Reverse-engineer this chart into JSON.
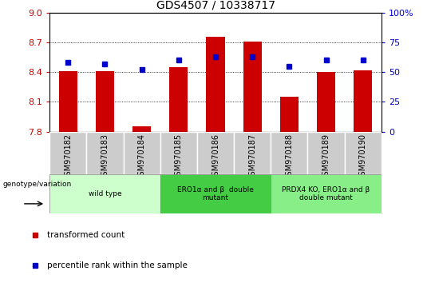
{
  "title": "GDS4507 / 10338717",
  "samples": [
    "GSM970182",
    "GSM970183",
    "GSM970184",
    "GSM970185",
    "GSM970186",
    "GSM970187",
    "GSM970188",
    "GSM970189",
    "GSM970190"
  ],
  "bar_values": [
    8.41,
    8.41,
    7.85,
    8.45,
    8.76,
    8.71,
    8.15,
    8.4,
    8.42
  ],
  "dot_values": [
    58,
    57,
    52,
    60,
    63,
    63,
    55,
    60,
    60
  ],
  "bar_color": "#cc0000",
  "dot_color": "#0000cc",
  "ylim_left": [
    7.8,
    9.0
  ],
  "ylim_right": [
    0,
    100
  ],
  "yticks_left": [
    7.8,
    8.1,
    8.4,
    8.7,
    9.0
  ],
  "yticks_right": [
    0,
    25,
    50,
    75,
    100
  ],
  "groups": [
    {
      "label": "wild type",
      "start": 0,
      "end": 3,
      "color": "#ccffcc"
    },
    {
      "label": "ERO1α and β  double\nmutant",
      "start": 3,
      "end": 6,
      "color": "#44cc44"
    },
    {
      "label": "PRDX4 KO, ERO1α and β\ndouble mutant",
      "start": 6,
      "end": 9,
      "color": "#88ee88"
    }
  ],
  "legend_items": [
    {
      "label": "transformed count",
      "color": "#cc0000"
    },
    {
      "label": "percentile rank within the sample",
      "color": "#0000cc"
    }
  ],
  "genotype_label": "genotype/variation"
}
